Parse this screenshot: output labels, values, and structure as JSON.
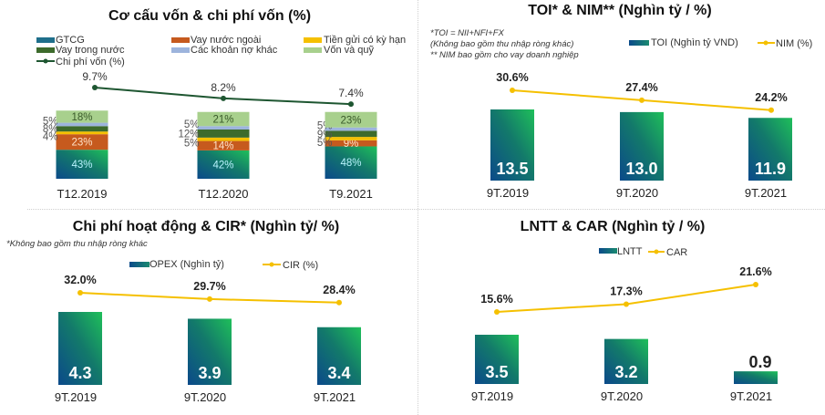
{
  "colors": {
    "gtcg": "#1f6f8b",
    "vay_nuoc_ngoai": "#c65a1e",
    "tien_gui": "#f5c000",
    "vay_trong_nuoc": "#3d6b2c",
    "cac_khoan_no_khac": "#9db4dc",
    "von_va_quy": "#a8d08d",
    "chi_phi_von_line": "#1e5631",
    "yellow_line": "#f5c000",
    "bar_grad_start": "#0b4a8a",
    "bar_grad_end": "#1fbf5a"
  },
  "chart_data": [
    {
      "id": "capital",
      "type": "bar",
      "stacked": true,
      "title": "Cơ cấu vốn & chi phí vốn (%)",
      "categories": [
        "T12.2019",
        "T12.2020",
        "T9.2021"
      ],
      "series": [
        {
          "name": "GTCG",
          "values": [
            43,
            42,
            48
          ],
          "labels": [
            "43%",
            "42%",
            "48%"
          ]
        },
        {
          "name": "Vay nước ngoài",
          "values": [
            23,
            14,
            9
          ],
          "labels": [
            "23%",
            "14%",
            "9%"
          ]
        },
        {
          "name": "Tiền gửi có kỳ hạn",
          "values": [
            4,
            5,
            5
          ],
          "labels": [
            "4%",
            "5%",
            "5%"
          ]
        },
        {
          "name": "Vay trong nước",
          "values": [
            8,
            12,
            9
          ],
          "labels": [
            "8%",
            "12%",
            "9%"
          ]
        },
        {
          "name": "Các khoản nợ khác",
          "values": [
            5,
            5,
            5
          ],
          "labels": [
            "5%",
            "5%",
            "5%"
          ]
        },
        {
          "name": "Vốn và quỹ",
          "values": [
            18,
            21,
            23
          ],
          "labels": [
            "18%",
            "21%",
            "23%"
          ]
        }
      ],
      "line": {
        "name": "Chi phí vốn  (%)",
        "values": [
          9.7,
          8.2,
          7.4
        ],
        "labels": [
          "9.7%",
          "8.2%",
          "7.4%"
        ]
      },
      "ylim": [
        0,
        100
      ]
    },
    {
      "id": "toi",
      "type": "bar",
      "title": "TOI* & NIM** (Nghìn tỷ / %)",
      "notes": [
        "*TOI = NII+NFI+FX",
        "(Không bao gồm thu nhập ròng khác)",
        "** NIM bao gồm cho vay doanh nghiệp"
      ],
      "categories": [
        "9T.2019",
        "9T.2020",
        "9T.2021"
      ],
      "bars": {
        "name": "TOI (Nghìn tỷ VND)",
        "values": [
          13.5,
          13.0,
          11.9
        ],
        "labels": [
          "13.5",
          "13.0",
          "11.9"
        ]
      },
      "line": {
        "name": "NIM (%)",
        "values": [
          30.6,
          27.4,
          24.2
        ],
        "labels": [
          "30.6%",
          "27.4%",
          "24.2%"
        ]
      }
    },
    {
      "id": "opex",
      "type": "bar",
      "title": "Chi phí hoạt động & CIR* (Nghìn tỷ/ %)",
      "notes": [
        "*Không bao gồm thu nhập ròng khác"
      ],
      "categories": [
        "9T.2019",
        "9T.2020",
        "9T.2021"
      ],
      "bars": {
        "name": "OPEX (Nghìn tỷ)",
        "values": [
          4.3,
          3.9,
          3.4
        ],
        "labels": [
          "4.3",
          "3.9",
          "3.4"
        ]
      },
      "line": {
        "name": "CIR (%)",
        "values": [
          32.0,
          29.7,
          28.4
        ],
        "labels": [
          "32.0%",
          "29.7%",
          "28.4%"
        ]
      }
    },
    {
      "id": "lntt",
      "type": "bar",
      "title": "LNTT & CAR (Nghìn tỷ / %)",
      "categories": [
        "9T.2019",
        "9T.2020",
        "9T.2021"
      ],
      "bars": {
        "name": "LNTT",
        "values": [
          3.5,
          3.2,
          0.9
        ],
        "labels": [
          "3.5",
          "3.2",
          "0.9"
        ]
      },
      "line": {
        "name": "CAR",
        "values": [
          15.6,
          17.3,
          21.6
        ],
        "labels": [
          "15.6%",
          "17.3%",
          "21.6%"
        ]
      }
    }
  ]
}
